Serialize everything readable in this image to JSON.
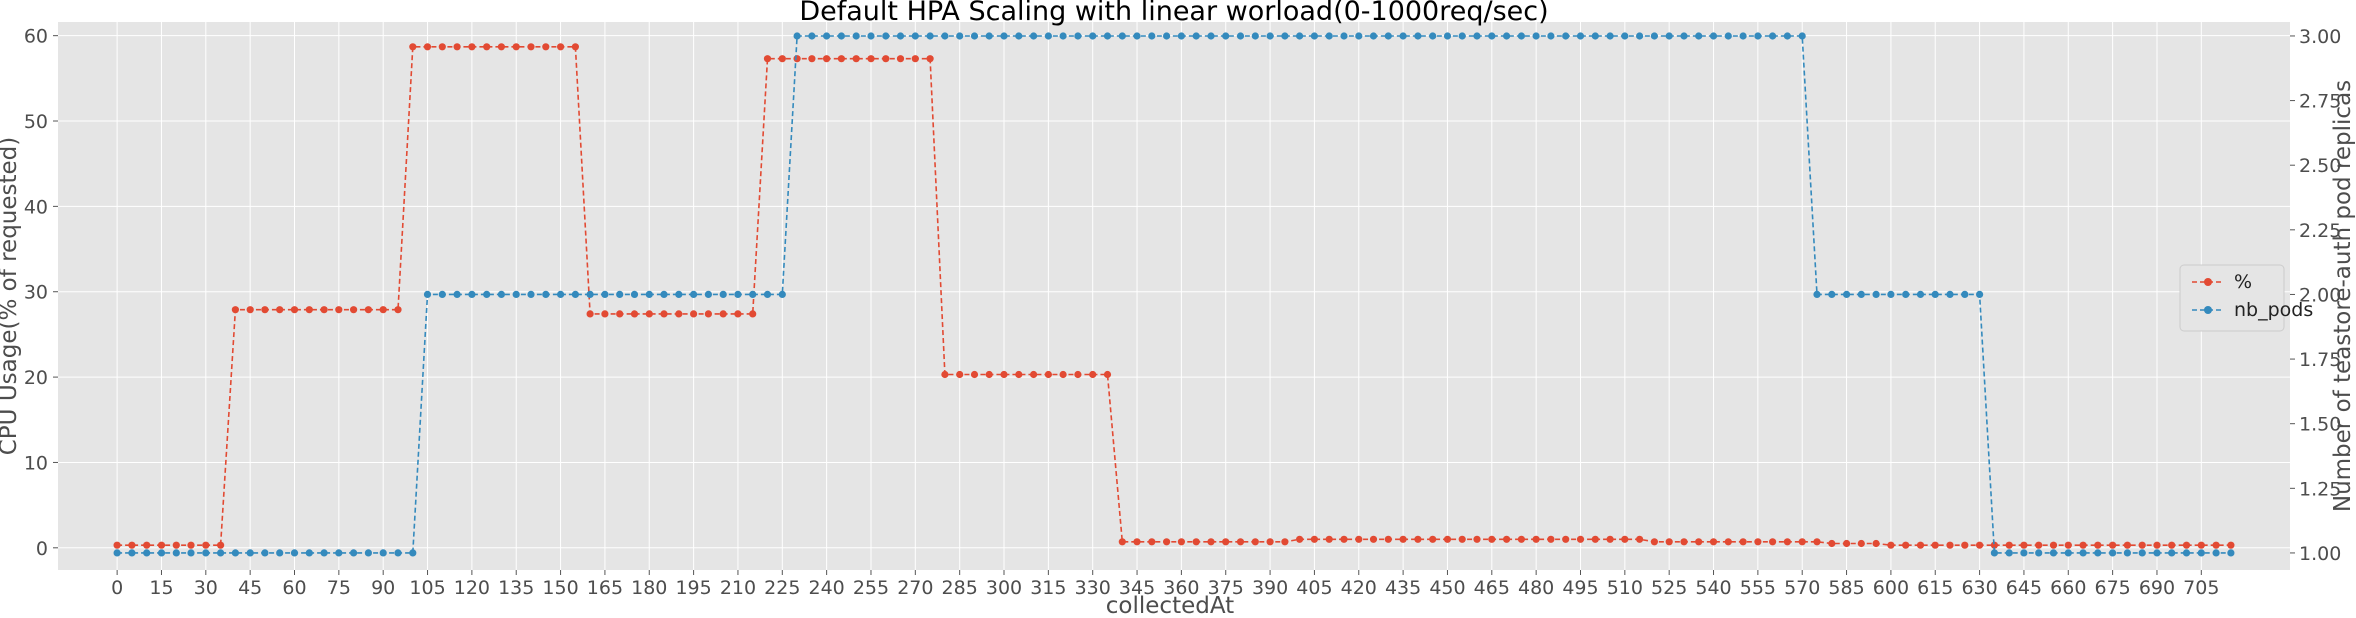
{
  "chart_data": {
    "type": "line",
    "title": "Default HPA Scaling with linear worload(0-1000req/sec)",
    "xlabel": "collectedAt",
    "ylabel": "CPU Usage(% of requested)",
    "y2label": "Number of teastore-auth pod replicas",
    "x_step": 5,
    "x_ticks": [
      0,
      15,
      30,
      45,
      60,
      75,
      90,
      105,
      120,
      135,
      150,
      165,
      180,
      195,
      210,
      225,
      240,
      255,
      270,
      285,
      300,
      315,
      330,
      345,
      360,
      375,
      390,
      405,
      420,
      435,
      450,
      465,
      480,
      495,
      510,
      525,
      540,
      555,
      570,
      585,
      600,
      615,
      630,
      645,
      660,
      675,
      690,
      705
    ],
    "xlim": [
      -20,
      735
    ],
    "ylim": [
      -2.6,
      61.6
    ],
    "y_ticks": [
      0,
      10,
      20,
      30,
      40,
      50,
      60
    ],
    "y2lim": [
      0.934,
      3.054
    ],
    "y2_ticks": [
      "1.00",
      "1.25",
      "1.50",
      "1.75",
      "2.00",
      "2.25",
      "2.50",
      "2.75",
      "3.00"
    ],
    "grid": true,
    "legend_position": "center-right",
    "series": [
      {
        "name": "%",
        "axis": "left",
        "color": "#e24a33",
        "segments": [
          {
            "from": 0,
            "to": 35,
            "value": 0.3
          },
          {
            "from": 40,
            "to": 95,
            "value": 27.9
          },
          {
            "from": 100,
            "to": 155,
            "value": 58.7
          },
          {
            "from": 160,
            "to": 215,
            "value": 27.4
          },
          {
            "from": 220,
            "to": 275,
            "value": 57.3
          },
          {
            "from": 280,
            "to": 335,
            "value": 20.3
          },
          {
            "from": 340,
            "to": 395,
            "value": 0.7
          },
          {
            "from": 400,
            "to": 515,
            "value": 1.0
          },
          {
            "from": 520,
            "to": 575,
            "value": 0.7
          },
          {
            "from": 580,
            "to": 595,
            "value": 0.5
          },
          {
            "from": 600,
            "to": 630,
            "value": 0.3
          },
          {
            "from": 635,
            "to": 715,
            "value": 0.3
          }
        ]
      },
      {
        "name": "nb_pods",
        "axis": "right",
        "color": "#348abd",
        "segments": [
          {
            "from": 0,
            "to": 100,
            "value": 1
          },
          {
            "from": 105,
            "to": 225,
            "value": 2
          },
          {
            "from": 230,
            "to": 570,
            "value": 3
          },
          {
            "from": 575,
            "to": 630,
            "value": 2
          },
          {
            "from": 635,
            "to": 715,
            "value": 1
          }
        ]
      }
    ]
  }
}
